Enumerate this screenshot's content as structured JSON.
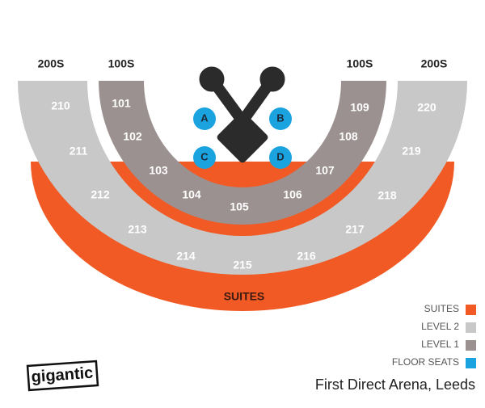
{
  "headers": [
    "200S",
    "100S",
    "100S",
    "200S"
  ],
  "level1_sections": [
    "101",
    "102",
    "103",
    "104",
    "105",
    "106",
    "107",
    "108",
    "109"
  ],
  "level2_sections": [
    "210",
    "211",
    "212",
    "213",
    "214",
    "215",
    "216",
    "217",
    "218",
    "219",
    "220"
  ],
  "suites": "SUITES",
  "floor_seats": [
    "A",
    "B",
    "C",
    "D"
  ],
  "legend": [
    {
      "label": "SUITES",
      "color": "#f15a24"
    },
    {
      "label": "LEVEL 2",
      "color": "#c8c8c8"
    },
    {
      "label": "LEVEL 1",
      "color": "#9c9191"
    },
    {
      "label": "FLOOR SEATS",
      "color": "#1ba3e0"
    }
  ],
  "logo": "gigantic",
  "venue": "First Direct Arena, Leeds"
}
